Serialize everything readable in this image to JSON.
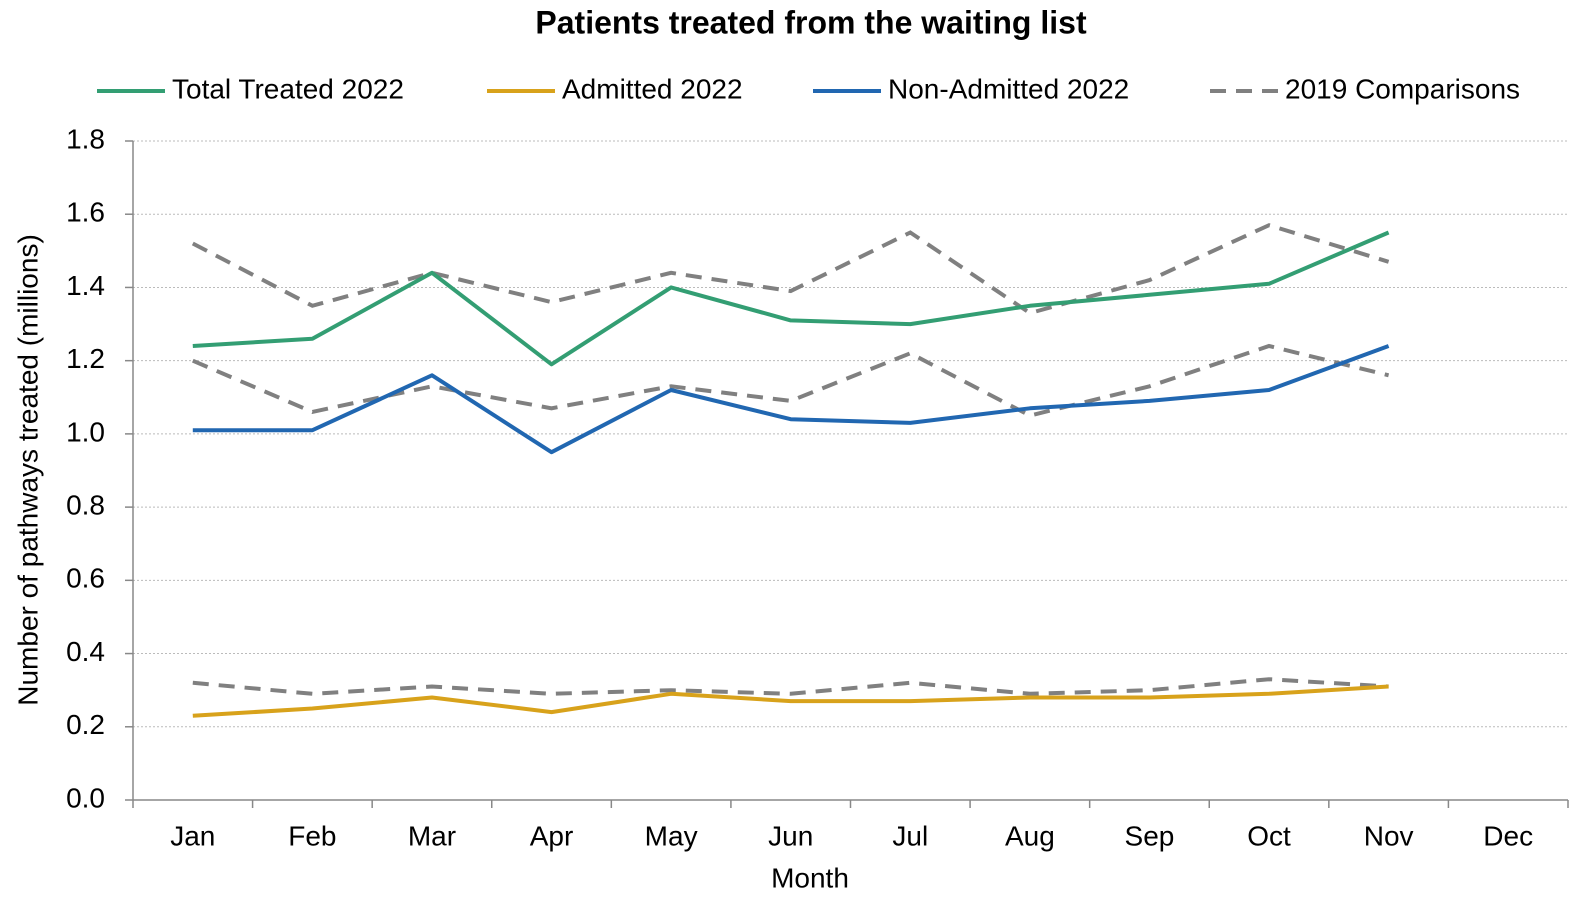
{
  "chart_data": {
    "type": "line",
    "title": "Patients treated from the waiting list",
    "x_label": "Month",
    "y_label": "Number of pathways treated (millions)",
    "categories": [
      "Jan",
      "Feb",
      "Mar",
      "Apr",
      "May",
      "Jun",
      "Jul",
      "Aug",
      "Sep",
      "Oct",
      "Nov",
      "Dec"
    ],
    "series": [
      {
        "name": "Total Treated 2022",
        "color": "#339e73",
        "values": [
          1.24,
          1.26,
          1.44,
          1.19,
          1.4,
          1.31,
          1.3,
          1.35,
          1.38,
          1.41,
          1.55,
          null
        ]
      },
      {
        "name": "Admitted 2022",
        "color": "#d8a21b",
        "values": [
          0.23,
          0.25,
          0.28,
          0.24,
          0.29,
          0.27,
          0.27,
          0.28,
          0.28,
          0.29,
          0.31,
          null
        ]
      },
      {
        "name": "Non-Admitted 2022",
        "color": "#2167b1",
        "values": [
          1.01,
          1.01,
          1.16,
          0.95,
          1.12,
          1.04,
          1.03,
          1.07,
          1.09,
          1.12,
          1.24,
          null
        ]
      }
    ],
    "comparisons": {
      "name": "2019 Comparisons",
      "color": "#808080",
      "dashed": true,
      "lines": [
        [
          1.52,
          1.35,
          1.44,
          1.36,
          1.44,
          1.39,
          1.55,
          1.33,
          1.42,
          1.57,
          1.47,
          null
        ],
        [
          0.32,
          0.29,
          0.31,
          0.29,
          0.3,
          0.29,
          0.32,
          0.29,
          0.3,
          0.33,
          0.31,
          null
        ],
        [
          1.2,
          1.06,
          1.13,
          1.07,
          1.13,
          1.09,
          1.22,
          1.05,
          1.13,
          1.24,
          1.16,
          null
        ]
      ]
    },
    "ylim": [
      0,
      1.8
    ],
    "yticks": [
      {
        "value": 0,
        "label": "0.0"
      },
      0.2,
      0.4,
      0.6,
      0.8,
      {
        "value": 1,
        "label": "1.0"
      },
      1.2,
      1.4,
      1.6,
      1.8
    ],
    "grid": true,
    "legend": "top"
  }
}
